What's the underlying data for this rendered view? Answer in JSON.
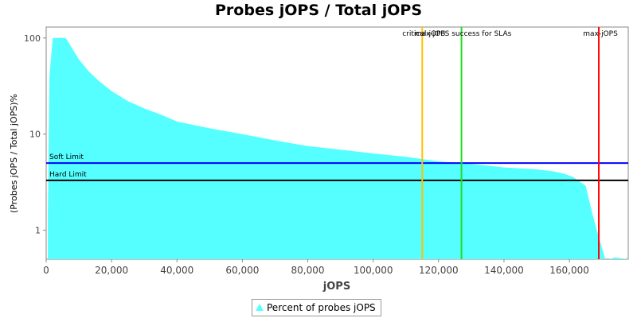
{
  "chart_data": {
    "type": "area",
    "title": "Probes jOPS / Total jOPS",
    "xlabel": "jOPS",
    "ylabel": "(Probes jOPS / Total jOPS)%",
    "y_scale": "log",
    "xlim": [
      0,
      178000
    ],
    "ylim": [
      0.5,
      130
    ],
    "x_ticks": [
      0,
      20000,
      40000,
      60000,
      80000,
      100000,
      120000,
      140000,
      160000
    ],
    "x_tick_labels": [
      "0",
      "20,000",
      "40,000",
      "60,000",
      "80,000",
      "100,000",
      "120,000",
      "140,000",
      "160,000"
    ],
    "y_ticks": [
      1,
      10,
      100
    ],
    "y_tick_labels": [
      "1",
      "10",
      "100"
    ],
    "grid": false,
    "legend_position": "bottom",
    "series": [
      {
        "name": "Percent of probes jOPS",
        "color": "#55ffff",
        "x": [
          500,
          1000,
          2000,
          6000,
          10000,
          13000,
          16000,
          20000,
          25000,
          30000,
          35000,
          40000,
          50000,
          60000,
          70000,
          80000,
          90000,
          100000,
          110000,
          115000,
          120000,
          127000,
          135000,
          140000,
          150000,
          155000,
          158000,
          161000,
          165000,
          167000,
          169000,
          171000,
          172000,
          174000,
          176000,
          178000
        ],
        "y": [
          1.5,
          40,
          100,
          100,
          60,
          45,
          36,
          28,
          22,
          18.5,
          16,
          13.5,
          11.5,
          10,
          8.6,
          7.5,
          6.9,
          6.3,
          5.8,
          5.5,
          5.2,
          5.0,
          4.7,
          4.5,
          4.3,
          4.1,
          3.9,
          3.6,
          2.9,
          1.5,
          0.85,
          0.5,
          0.5,
          0.52,
          0.51,
          0.5
        ]
      }
    ],
    "reference_lines": [
      {
        "label": "critical-jOPS",
        "x": 115000,
        "color": "#ffc000"
      },
      {
        "label": "max-jOPS success for SLAs",
        "x": 127000,
        "color": "#22dd22"
      },
      {
        "label": "max-jOPS",
        "x": 169000,
        "color": "#ff0000"
      }
    ],
    "horizontal_lines": [
      {
        "label": "Soft Limit",
        "y": 5.0,
        "color": "#0000ff"
      },
      {
        "label": "Hard Limit",
        "y": 3.3,
        "color": "#000000"
      }
    ]
  }
}
